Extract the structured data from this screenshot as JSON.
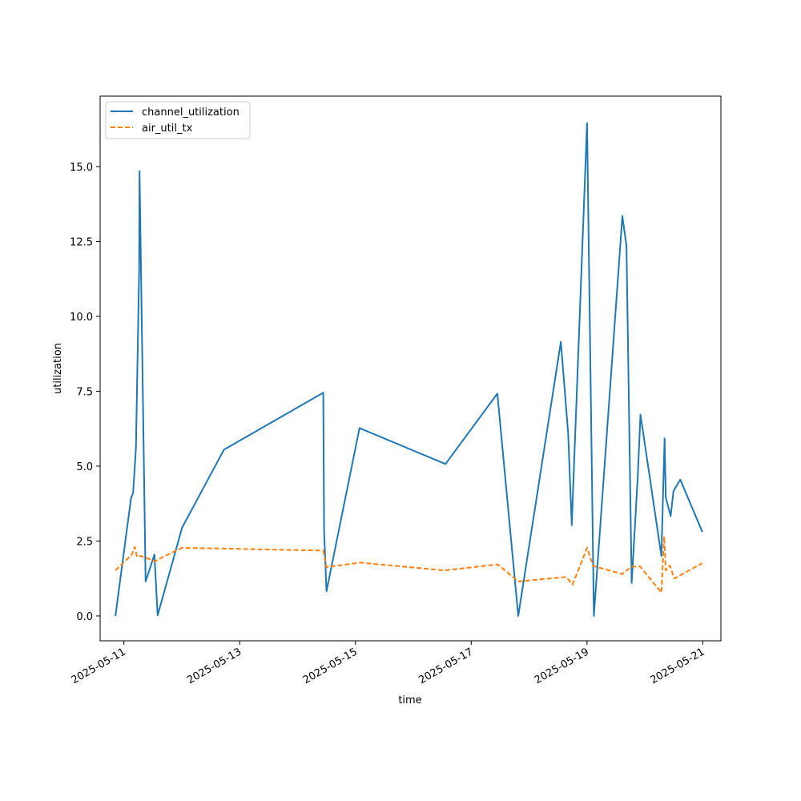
{
  "chart_data": {
    "type": "line",
    "title": "",
    "xlabel": "time",
    "ylabel": "utilization",
    "x_type": "date",
    "xlim": [
      "2025-05-10T14:09",
      "2025-05-21T07:30"
    ],
    "ylim": [
      -0.83,
      17.35
    ],
    "xticks": [
      "2025-05-11",
      "2025-05-13",
      "2025-05-15",
      "2025-05-17",
      "2025-05-19",
      "2025-05-21"
    ],
    "yticks": [
      0.0,
      2.5,
      5.0,
      7.5,
      10.0,
      12.5,
      15.0
    ],
    "ytick_labels": [
      "0.0",
      "2.5",
      "5.0",
      "7.5",
      "10.0",
      "12.5",
      "15.0"
    ],
    "legend_position": "upper left",
    "grid": false,
    "series": [
      {
        "name": "channel_utilization",
        "color": "#1f77b4",
        "style": "solid",
        "points": [
          [
            "2025-05-10T20:30",
            0.0
          ],
          [
            "2025-05-11T03:00",
            3.95
          ],
          [
            "2025-05-11T03:50",
            4.1
          ],
          [
            "2025-05-11T05:00",
            5.6
          ],
          [
            "2025-05-11T06:20",
            11.5
          ],
          [
            "2025-05-11T06:30",
            14.85
          ],
          [
            "2025-05-11T09:00",
            1.15
          ],
          [
            "2025-05-11T12:40",
            2.05
          ],
          [
            "2025-05-11T14:00",
            0.02
          ],
          [
            "2025-05-12T00:10",
            2.95
          ],
          [
            "2025-05-12T17:30",
            5.55
          ],
          [
            "2025-05-14T10:40",
            7.45
          ],
          [
            "2025-05-14T11:00",
            2.85
          ],
          [
            "2025-05-14T12:00",
            0.82
          ],
          [
            "2025-05-15T01:40",
            6.27
          ],
          [
            "2025-05-16T13:20",
            5.07
          ],
          [
            "2025-05-17T10:50",
            7.42
          ],
          [
            "2025-05-17T19:30",
            0.0
          ],
          [
            "2025-05-18T13:10",
            9.15
          ],
          [
            "2025-05-18T16:10",
            6.1
          ],
          [
            "2025-05-18T17:40",
            3.03
          ],
          [
            "2025-05-19T00:00",
            16.45
          ],
          [
            "2025-05-19T02:50",
            0.0
          ],
          [
            "2025-05-19T14:40",
            13.35
          ],
          [
            "2025-05-19T16:20",
            12.35
          ],
          [
            "2025-05-19T18:30",
            1.1
          ],
          [
            "2025-05-19T21:00",
            4.6
          ],
          [
            "2025-05-19T22:10",
            6.72
          ],
          [
            "2025-05-20T06:50",
            2.0
          ],
          [
            "2025-05-20T08:10",
            5.93
          ],
          [
            "2025-05-20T08:40",
            3.95
          ],
          [
            "2025-05-20T10:40",
            3.33
          ],
          [
            "2025-05-20T11:50",
            4.17
          ],
          [
            "2025-05-20T14:40",
            4.55
          ],
          [
            "2025-05-20T23:50",
            2.8
          ]
        ]
      },
      {
        "name": "air_util_tx",
        "color": "#ff7f0e",
        "style": "dashed",
        "points": [
          [
            "2025-05-10T20:30",
            1.52
          ],
          [
            "2025-05-11T03:20",
            2.05
          ],
          [
            "2025-05-11T04:30",
            2.3
          ],
          [
            "2025-05-11T05:30",
            1.97
          ],
          [
            "2025-05-11T07:00",
            2.0
          ],
          [
            "2025-05-11T12:50",
            1.83
          ],
          [
            "2025-05-12T00:00",
            2.27
          ],
          [
            "2025-05-12T17:00",
            2.25
          ],
          [
            "2025-05-14T10:40",
            2.18
          ],
          [
            "2025-05-14T12:00",
            1.63
          ],
          [
            "2025-05-15T02:00",
            1.78
          ],
          [
            "2025-05-16T13:00",
            1.52
          ],
          [
            "2025-05-17T11:00",
            1.72
          ],
          [
            "2025-05-17T19:30",
            1.15
          ],
          [
            "2025-05-18T15:20",
            1.3
          ],
          [
            "2025-05-18T18:00",
            1.05
          ],
          [
            "2025-05-19T00:00",
            2.27
          ],
          [
            "2025-05-19T02:30",
            1.67
          ],
          [
            "2025-05-19T14:40",
            1.4
          ],
          [
            "2025-05-19T18:30",
            1.65
          ],
          [
            "2025-05-19T22:00",
            1.65
          ],
          [
            "2025-05-20T06:50",
            0.78
          ],
          [
            "2025-05-20T08:00",
            2.65
          ],
          [
            "2025-05-20T08:40",
            1.52
          ],
          [
            "2025-05-20T10:20",
            1.68
          ],
          [
            "2025-05-20T12:10",
            1.25
          ],
          [
            "2025-05-20T23:50",
            1.76
          ]
        ]
      }
    ]
  }
}
